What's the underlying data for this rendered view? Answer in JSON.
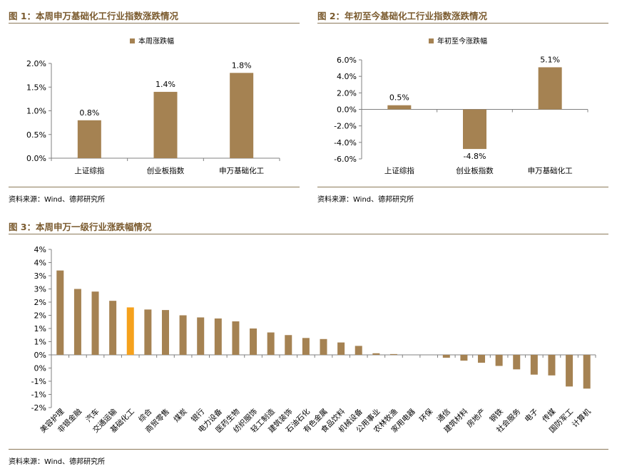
{
  "fig1": {
    "title": "图 1：本周申万基础化工行业指数涨跌情况",
    "source": "资料来源：Wind、德邦研究所"
  },
  "fig2": {
    "title": "图 2：年初至今基础化工行业指数涨跌情况",
    "source": "资料来源：Wind、德邦研究所"
  },
  "fig3": {
    "title": "图 3：本周申万一级行业涨跌幅情况",
    "source": "资料来源：Wind、德邦研究所"
  },
  "colors": {
    "bar": "#a58252",
    "highlight": "#f5a11c",
    "title": "#7a5a2e"
  },
  "chart_data": [
    {
      "type": "bar",
      "title": "图 1：本周申万基础化工行业指数涨跌情况",
      "legend": "本周涨跌幅",
      "categories": [
        "上证综指",
        "创业板指数",
        "申万基础化工"
      ],
      "values": [
        0.8,
        1.4,
        1.8
      ],
      "data_labels": [
        "0.8%",
        "1.4%",
        "1.8%"
      ],
      "unit": "%",
      "ylim": [
        0,
        2.0
      ],
      "yticks": [
        0,
        0.5,
        1.0,
        1.5,
        2.0
      ],
      "ytick_labels": [
        "0.0%",
        "0.5%",
        "1.0%",
        "1.5%",
        "2.0%"
      ]
    },
    {
      "type": "bar",
      "title": "图 2：年初至今基础化工行业指数涨跌情况",
      "legend": "年初至今涨跌幅",
      "categories": [
        "上证综指",
        "创业板指数",
        "申万基础化工"
      ],
      "values": [
        0.5,
        -4.8,
        5.1
      ],
      "data_labels": [
        "0.5%",
        "-4.8%",
        "5.1%"
      ],
      "unit": "%",
      "ylim": [
        -6.0,
        6.0
      ],
      "yticks": [
        -6,
        -4,
        -2,
        0,
        2,
        4,
        6
      ],
      "ytick_labels": [
        "-6.0%",
        "-4.0%",
        "-2.0%",
        "0.0%",
        "2.0%",
        "4.0%",
        "6.0%"
      ]
    },
    {
      "type": "bar",
      "title": "图 3：本周申万一级行业涨跌幅情况",
      "categories": [
        "美容护理",
        "非银金融",
        "汽车",
        "交通运输",
        "基础化工",
        "综合",
        "商贸零售",
        "煤炭",
        "银行",
        "电力设备",
        "医药生物",
        "纺织服饰",
        "轻工制造",
        "建筑装饰",
        "石油石化",
        "有色金属",
        "食品饮料",
        "机械设备",
        "公用事业",
        "农林牧渔",
        "家用电器",
        "环保",
        "通信",
        "建筑材料",
        "房地产",
        "钢铁",
        "社会服务",
        "电子",
        "传媒",
        "国防军工",
        "计算机"
      ],
      "values": [
        3.2,
        2.5,
        2.4,
        2.05,
        1.8,
        1.72,
        1.7,
        1.5,
        1.42,
        1.38,
        1.27,
        1.0,
        0.85,
        0.75,
        0.64,
        0.6,
        0.47,
        0.34,
        0.06,
        0.03,
        0.0,
        0.0,
        -0.11,
        -0.22,
        -0.3,
        -0.42,
        -0.55,
        -0.75,
        -0.78,
        -1.2,
        -1.28
      ],
      "highlight": "基础化工",
      "unit": "%",
      "ylim": [
        -2.0,
        4.0
      ],
      "yticks": [
        -2.0,
        -1.5,
        -1.0,
        -0.5,
        0,
        0.5,
        1.0,
        1.5,
        2.0,
        2.5,
        3.0,
        3.5,
        4.0
      ],
      "ytick_labels": [
        "-2%",
        "-1%",
        "-1%",
        "0%",
        "0%",
        "1%",
        "1%",
        "2%",
        "2%",
        "3%",
        "3%",
        "4%",
        "4%"
      ]
    }
  ]
}
